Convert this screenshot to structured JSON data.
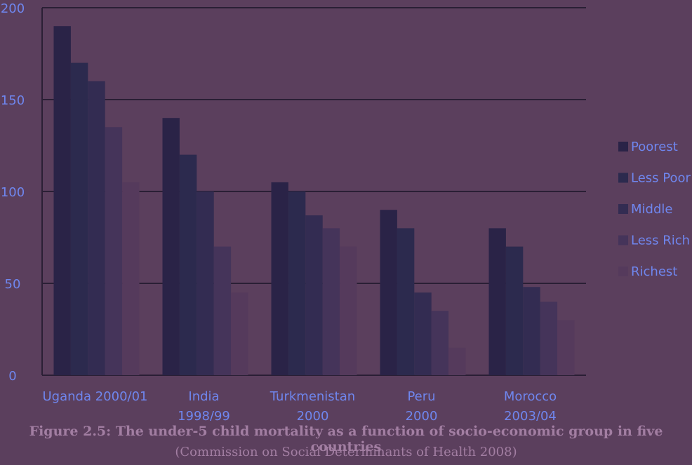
{
  "chart_data": {
    "type": "bar",
    "categories": [
      [
        "Uganda 2000/01"
      ],
      [
        "India",
        "1998/99"
      ],
      [
        "Turkmenistan",
        "2000"
      ],
      [
        "Peru",
        "2000"
      ],
      [
        "Morocco",
        "2003/04"
      ]
    ],
    "series": [
      {
        "name": "Poorest",
        "values": [
          190,
          140,
          105,
          90,
          80
        ],
        "color": "#2a2347"
      },
      {
        "name": "Less Poor",
        "values": [
          170,
          120,
          100,
          80,
          70
        ],
        "color": "#2c2a4e"
      },
      {
        "name": "Middle",
        "values": [
          160,
          100,
          87,
          45,
          48
        ],
        "color": "#332c52"
      },
      {
        "name": "Less Rich",
        "values": [
          135,
          70,
          80,
          35,
          40
        ],
        "color": "#45345a"
      },
      {
        "name": "Richest",
        "values": [
          105,
          45,
          70,
          15,
          30
        ],
        "color": "#553a5c"
      }
    ],
    "ylim": [
      0,
      200
    ],
    "yticks": [
      0,
      50,
      100,
      150,
      200
    ],
    "grid": true,
    "legend_position": "right",
    "colors": {
      "background": "#5b3f5d",
      "gridline": "#2a1f35",
      "label_text": "#6f86ee",
      "caption_text": "#a27ea2"
    }
  },
  "caption": {
    "title": "Figure 2.5: The under-5 child mortality as a function of socio-economic group in five countries",
    "source": "(Commission on Social Determinants of Health 2008)"
  }
}
